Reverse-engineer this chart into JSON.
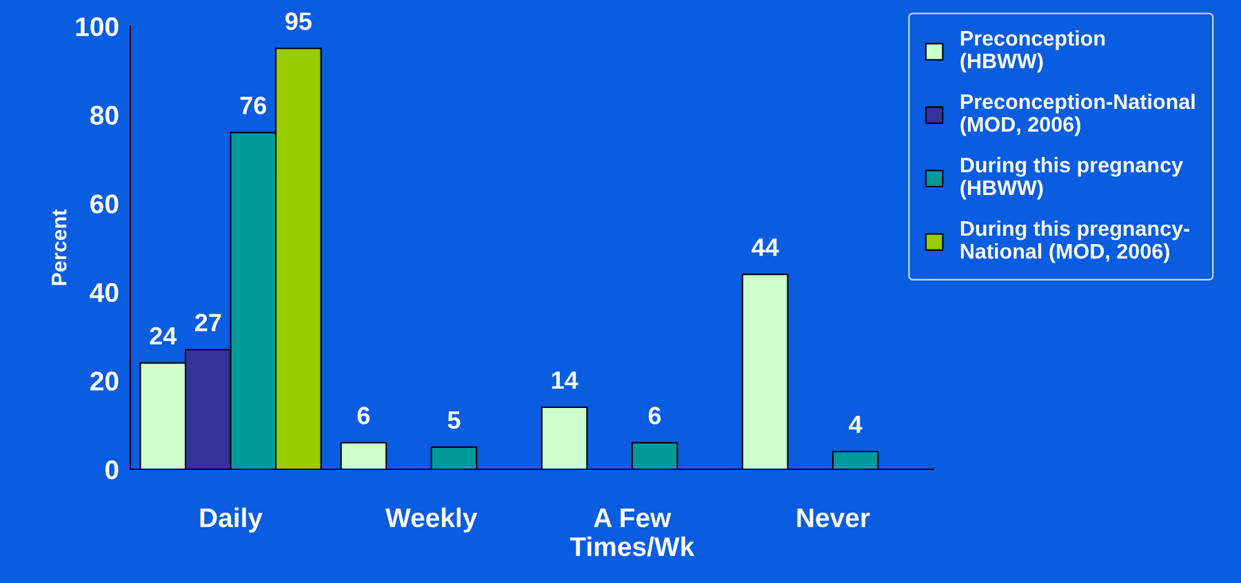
{
  "chart_data": {
    "type": "bar",
    "ylabel": "Percent",
    "categories": [
      "Daily",
      "Weekly",
      "A Few\nTimes/Wk",
      "Never"
    ],
    "series": [
      {
        "name": "Preconception\n(HBWW)",
        "color": "#ccffcc",
        "values": [
          24,
          6,
          14,
          44
        ]
      },
      {
        "name": "Preconception-National\n(MOD, 2006)",
        "color": "#333399",
        "values": [
          27,
          null,
          null,
          null
        ]
      },
      {
        "name": "During this pregnancy\n(HBWW)",
        "color": "#009999",
        "values": [
          76,
          5,
          6,
          4
        ]
      },
      {
        "name": "During this pregnancy-\nNational (MOD, 2006)",
        "color": "#99cc00",
        "values": [
          95,
          null,
          null,
          null
        ]
      }
    ],
    "ylim": [
      0,
      100
    ],
    "yticks": [
      0,
      20,
      40,
      60,
      80,
      100
    ],
    "data_labels": true,
    "legend": "right",
    "grid": false
  }
}
